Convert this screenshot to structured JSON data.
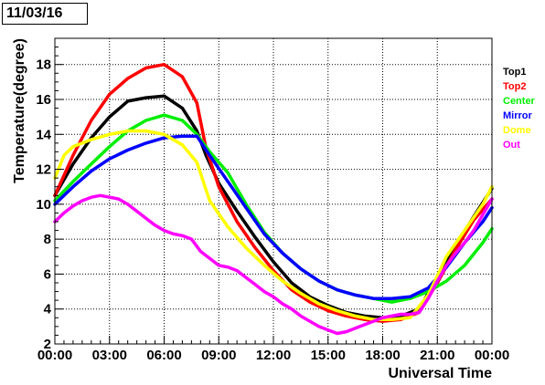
{
  "date_label": "11/03/16",
  "chart_data": {
    "type": "line",
    "title": "",
    "xlabel": "Universal Time",
    "ylabel": "Temperature(degree)",
    "x_unit": "hours",
    "xlim": [
      0,
      24
    ],
    "ylim": [
      2,
      19.5
    ],
    "x_ticks": [
      {
        "value": 0,
        "label": "00:00"
      },
      {
        "value": 3,
        "label": "03:00"
      },
      {
        "value": 6,
        "label": "06:00"
      },
      {
        "value": 9,
        "label": "09:00"
      },
      {
        "value": 12,
        "label": "12:00"
      },
      {
        "value": 15,
        "label": "15:00"
      },
      {
        "value": 18,
        "label": "18:00"
      },
      {
        "value": 21,
        "label": "21:00"
      },
      {
        "value": 24,
        "label": "00:00"
      }
    ],
    "y_ticks": [
      2,
      4,
      6,
      8,
      10,
      12,
      14,
      16,
      18
    ],
    "grid": true,
    "legend_position": "right",
    "series": [
      {
        "name": "Top1",
        "color": "#000000",
        "points": [
          [
            0,
            10.5
          ],
          [
            1,
            12.3
          ],
          [
            2,
            13.8
          ],
          [
            3,
            15.0
          ],
          [
            4,
            15.9
          ],
          [
            5,
            16.1
          ],
          [
            6,
            16.2
          ],
          [
            7,
            15.5
          ],
          [
            7.8,
            14.2
          ],
          [
            8.3,
            12.8
          ],
          [
            9,
            11.2
          ],
          [
            10,
            9.6
          ],
          [
            11,
            8.1
          ],
          [
            12,
            6.7
          ],
          [
            13,
            5.5
          ],
          [
            14,
            4.7
          ],
          [
            15,
            4.2
          ],
          [
            16,
            3.8
          ],
          [
            17,
            3.6
          ],
          [
            18,
            3.5
          ],
          [
            19,
            3.6
          ],
          [
            20,
            4.0
          ],
          [
            21,
            5.8
          ],
          [
            22,
            7.6
          ],
          [
            23,
            9.3
          ],
          [
            24,
            10.9
          ]
        ]
      },
      {
        "name": "Top2",
        "color": "#ff0000",
        "points": [
          [
            0,
            10.5
          ],
          [
            1,
            12.8
          ],
          [
            2,
            14.8
          ],
          [
            3,
            16.3
          ],
          [
            4,
            17.2
          ],
          [
            5,
            17.8
          ],
          [
            6,
            18.0
          ],
          [
            7,
            17.3
          ],
          [
            7.8,
            15.8
          ],
          [
            8.3,
            13.2
          ],
          [
            9,
            11.0
          ],
          [
            10,
            9.0
          ],
          [
            11,
            7.5
          ],
          [
            12,
            6.2
          ],
          [
            13,
            5.1
          ],
          [
            14,
            4.4
          ],
          [
            15,
            3.9
          ],
          [
            16,
            3.6
          ],
          [
            17,
            3.4
          ],
          [
            18,
            3.3
          ],
          [
            19,
            3.4
          ],
          [
            20,
            3.8
          ],
          [
            21,
            5.5
          ],
          [
            22,
            7.4
          ],
          [
            23,
            9.1
          ],
          [
            24,
            10.3
          ]
        ]
      },
      {
        "name": "Center",
        "color": "#00ee00",
        "points": [
          [
            0,
            10.2
          ],
          [
            1,
            11.3
          ],
          [
            2,
            12.3
          ],
          [
            3,
            13.3
          ],
          [
            4,
            14.2
          ],
          [
            5,
            14.8
          ],
          [
            6,
            15.1
          ],
          [
            7,
            14.8
          ],
          [
            7.8,
            14.0
          ],
          [
            8.5,
            13.0
          ],
          [
            9.5,
            11.8
          ],
          [
            10.5,
            10.0
          ],
          [
            11.5,
            8.4
          ],
          [
            12.5,
            7.2
          ],
          [
            13.5,
            6.3
          ],
          [
            14.5,
            5.6
          ],
          [
            15.5,
            5.1
          ],
          [
            16.5,
            4.8
          ],
          [
            17.5,
            4.6
          ],
          [
            18.5,
            4.4
          ],
          [
            19.5,
            4.6
          ],
          [
            20.5,
            5.0
          ],
          [
            21.5,
            5.6
          ],
          [
            22.5,
            6.5
          ],
          [
            23.5,
            7.8
          ],
          [
            24,
            8.6
          ]
        ]
      },
      {
        "name": "Mirror",
        "color": "#0000ff",
        "points": [
          [
            0,
            10.0
          ],
          [
            1,
            11.0
          ],
          [
            2,
            11.9
          ],
          [
            3,
            12.6
          ],
          [
            4,
            13.1
          ],
          [
            5,
            13.5
          ],
          [
            6,
            13.8
          ],
          [
            7,
            13.9
          ],
          [
            7.8,
            13.9
          ],
          [
            8.5,
            12.8
          ],
          [
            9.5,
            11.3
          ],
          [
            10.5,
            9.8
          ],
          [
            11.5,
            8.3
          ],
          [
            12.5,
            7.2
          ],
          [
            13.5,
            6.3
          ],
          [
            14.5,
            5.6
          ],
          [
            15.5,
            5.1
          ],
          [
            16.5,
            4.8
          ],
          [
            17.5,
            4.6
          ],
          [
            18.5,
            4.6
          ],
          [
            19.5,
            4.7
          ],
          [
            20.5,
            5.2
          ],
          [
            21.5,
            6.4
          ],
          [
            22.5,
            7.8
          ],
          [
            23.5,
            9.0
          ],
          [
            24,
            9.8
          ]
        ]
      },
      {
        "name": "Dome",
        "color": "#ffff00",
        "points": [
          [
            0,
            11.5
          ],
          [
            0.5,
            12.8
          ],
          [
            1,
            13.3
          ],
          [
            2,
            13.7
          ],
          [
            3,
            14.0
          ],
          [
            4,
            14.2
          ],
          [
            5,
            14.2
          ],
          [
            6,
            14.0
          ],
          [
            7,
            13.4
          ],
          [
            7.8,
            12.4
          ],
          [
            8.5,
            10.2
          ],
          [
            9.5,
            8.7
          ],
          [
            10.5,
            7.5
          ],
          [
            11.5,
            6.5
          ],
          [
            12.5,
            5.6
          ],
          [
            13.5,
            4.9
          ],
          [
            14.5,
            4.3
          ],
          [
            15.5,
            3.9
          ],
          [
            16.5,
            3.6
          ],
          [
            17.5,
            3.4
          ],
          [
            18.5,
            3.4
          ],
          [
            19.5,
            3.5
          ],
          [
            20.5,
            4.8
          ],
          [
            21.5,
            7.0
          ],
          [
            22.5,
            8.5
          ],
          [
            23.5,
            10.0
          ],
          [
            24,
            11.0
          ]
        ]
      },
      {
        "name": "Out",
        "color": "#ff00ff",
        "points": [
          [
            0,
            9.0
          ],
          [
            0.5,
            9.5
          ],
          [
            1,
            9.9
          ],
          [
            1.5,
            10.2
          ],
          [
            2,
            10.4
          ],
          [
            2.5,
            10.5
          ],
          [
            3,
            10.4
          ],
          [
            3.5,
            10.3
          ],
          [
            4,
            10.0
          ],
          [
            4.5,
            9.6
          ],
          [
            5,
            9.2
          ],
          [
            5.5,
            8.8
          ],
          [
            6,
            8.5
          ],
          [
            6.5,
            8.3
          ],
          [
            7,
            8.2
          ],
          [
            7.5,
            8.0
          ],
          [
            8,
            7.3
          ],
          [
            8.5,
            6.9
          ],
          [
            9,
            6.5
          ],
          [
            9.5,
            6.4
          ],
          [
            10,
            6.2
          ],
          [
            10.5,
            5.8
          ],
          [
            11,
            5.4
          ],
          [
            11.5,
            5.0
          ],
          [
            12,
            4.7
          ],
          [
            12.5,
            4.3
          ],
          [
            13,
            4.0
          ],
          [
            13.5,
            3.6
          ],
          [
            14,
            3.3
          ],
          [
            14.5,
            3.0
          ],
          [
            15,
            2.8
          ],
          [
            15.5,
            2.6
          ],
          [
            16,
            2.7
          ],
          [
            16.5,
            2.9
          ],
          [
            17,
            3.1
          ],
          [
            17.5,
            3.3
          ],
          [
            18,
            3.5
          ],
          [
            18.5,
            3.6
          ],
          [
            19,
            3.7
          ],
          [
            19.5,
            3.7
          ],
          [
            20,
            3.8
          ],
          [
            20.5,
            4.6
          ],
          [
            21,
            5.6
          ],
          [
            21.5,
            6.5
          ],
          [
            22,
            7.2
          ],
          [
            22.5,
            7.8
          ],
          [
            23,
            8.5
          ],
          [
            23.5,
            9.4
          ],
          [
            24,
            10.3
          ]
        ]
      }
    ]
  }
}
